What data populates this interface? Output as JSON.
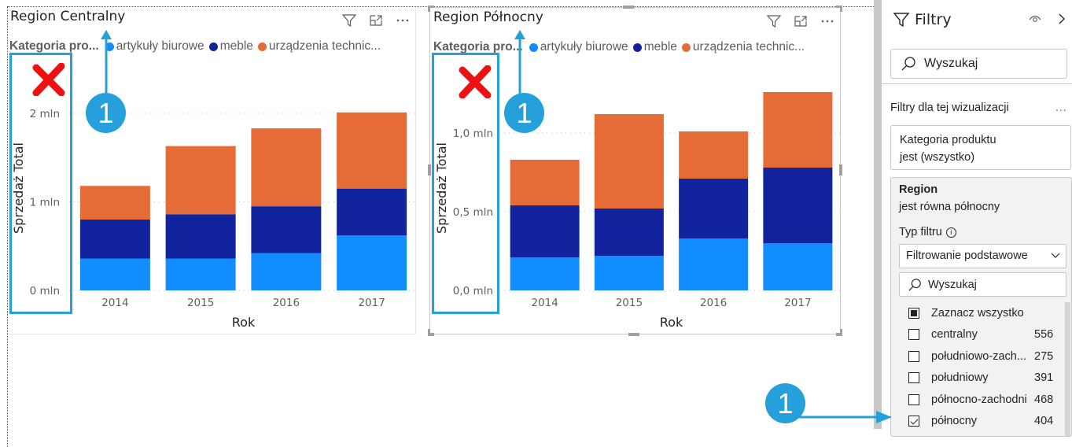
{
  "legend": {
    "title": "Kategoria pro...",
    "items": [
      {
        "label": "artykuły biurowe",
        "color": "#118dff"
      },
      {
        "label": "meble",
        "color": "#12239e"
      },
      {
        "label": "urządzenia technic...",
        "color": "#e66c37"
      }
    ]
  },
  "visuals": [
    {
      "title": "Region Centralny"
    },
    {
      "title": "Region Północny"
    }
  ],
  "annotations": {
    "badge_label": "1"
  },
  "chart_data": [
    {
      "type": "bar",
      "stacked": true,
      "title": "Region Centralny",
      "xlabel": "Rok",
      "ylabel": "Sprzedaż Total",
      "categories": [
        "2014",
        "2015",
        "2016",
        "2017"
      ],
      "ylim": [
        0,
        2.05
      ],
      "yticks": [
        0,
        1,
        2
      ],
      "ytick_labels": [
        "0 mln",
        "1 mln",
        "2 mln"
      ],
      "unit": "mln",
      "grid": true,
      "legend": "top-left",
      "series": [
        {
          "name": "artykuły biurowe",
          "color": "#118dff",
          "values": [
            0.36,
            0.36,
            0.42,
            0.62
          ]
        },
        {
          "name": "meble",
          "color": "#12239e",
          "values": [
            0.44,
            0.5,
            0.53,
            0.53
          ]
        },
        {
          "name": "urządzenia techniczne",
          "color": "#e66c37",
          "values": [
            0.38,
            0.77,
            0.88,
            0.86
          ]
        }
      ]
    },
    {
      "type": "bar",
      "stacked": true,
      "title": "Region Północny",
      "xlabel": "Rok",
      "ylabel": "Sprzedaż Total",
      "categories": [
        "2014",
        "2015",
        "2016",
        "2017"
      ],
      "ylim": [
        0,
        1.27
      ],
      "yticks": [
        0,
        0.5,
        1.0
      ],
      "ytick_labels": [
        "0,0 mln",
        "0,5 mln",
        "1,0 mln"
      ],
      "unit": "mln",
      "grid": true,
      "legend": "top-left",
      "series": [
        {
          "name": "artykuły biurowe",
          "color": "#118dff",
          "values": [
            0.21,
            0.22,
            0.33,
            0.3
          ]
        },
        {
          "name": "meble",
          "color": "#12239e",
          "values": [
            0.33,
            0.3,
            0.38,
            0.48
          ]
        },
        {
          "name": "urządzenia techniczne",
          "color": "#e66c37",
          "values": [
            0.29,
            0.6,
            0.3,
            0.48
          ]
        }
      ]
    }
  ],
  "filter_pane": {
    "title": "Filtry",
    "search_placeholder": "Wyszukaj",
    "section_title": "Filtry dla tej wizualizacji",
    "more_label": "...",
    "card_category": {
      "field": "Kategoria produktu",
      "condition": "jest (wszystko)"
    },
    "card_region": {
      "field": "Region",
      "condition": "jest równa północny",
      "filter_type_label": "Typ filtru",
      "filter_type_value": "Filtrowanie podstawowe",
      "search_placeholder": "Wyszukaj",
      "items": [
        {
          "label": "Zaznacz wszystko",
          "count": "",
          "state": "partial"
        },
        {
          "label": "centralny",
          "count": "556",
          "state": "unchecked"
        },
        {
          "label": "południowo-zach...",
          "count": "275",
          "state": "unchecked"
        },
        {
          "label": "południowy",
          "count": "391",
          "state": "unchecked"
        },
        {
          "label": "północno-zachodni",
          "count": "468",
          "state": "unchecked"
        },
        {
          "label": "północny",
          "count": "404",
          "state": "checked"
        }
      ]
    }
  }
}
